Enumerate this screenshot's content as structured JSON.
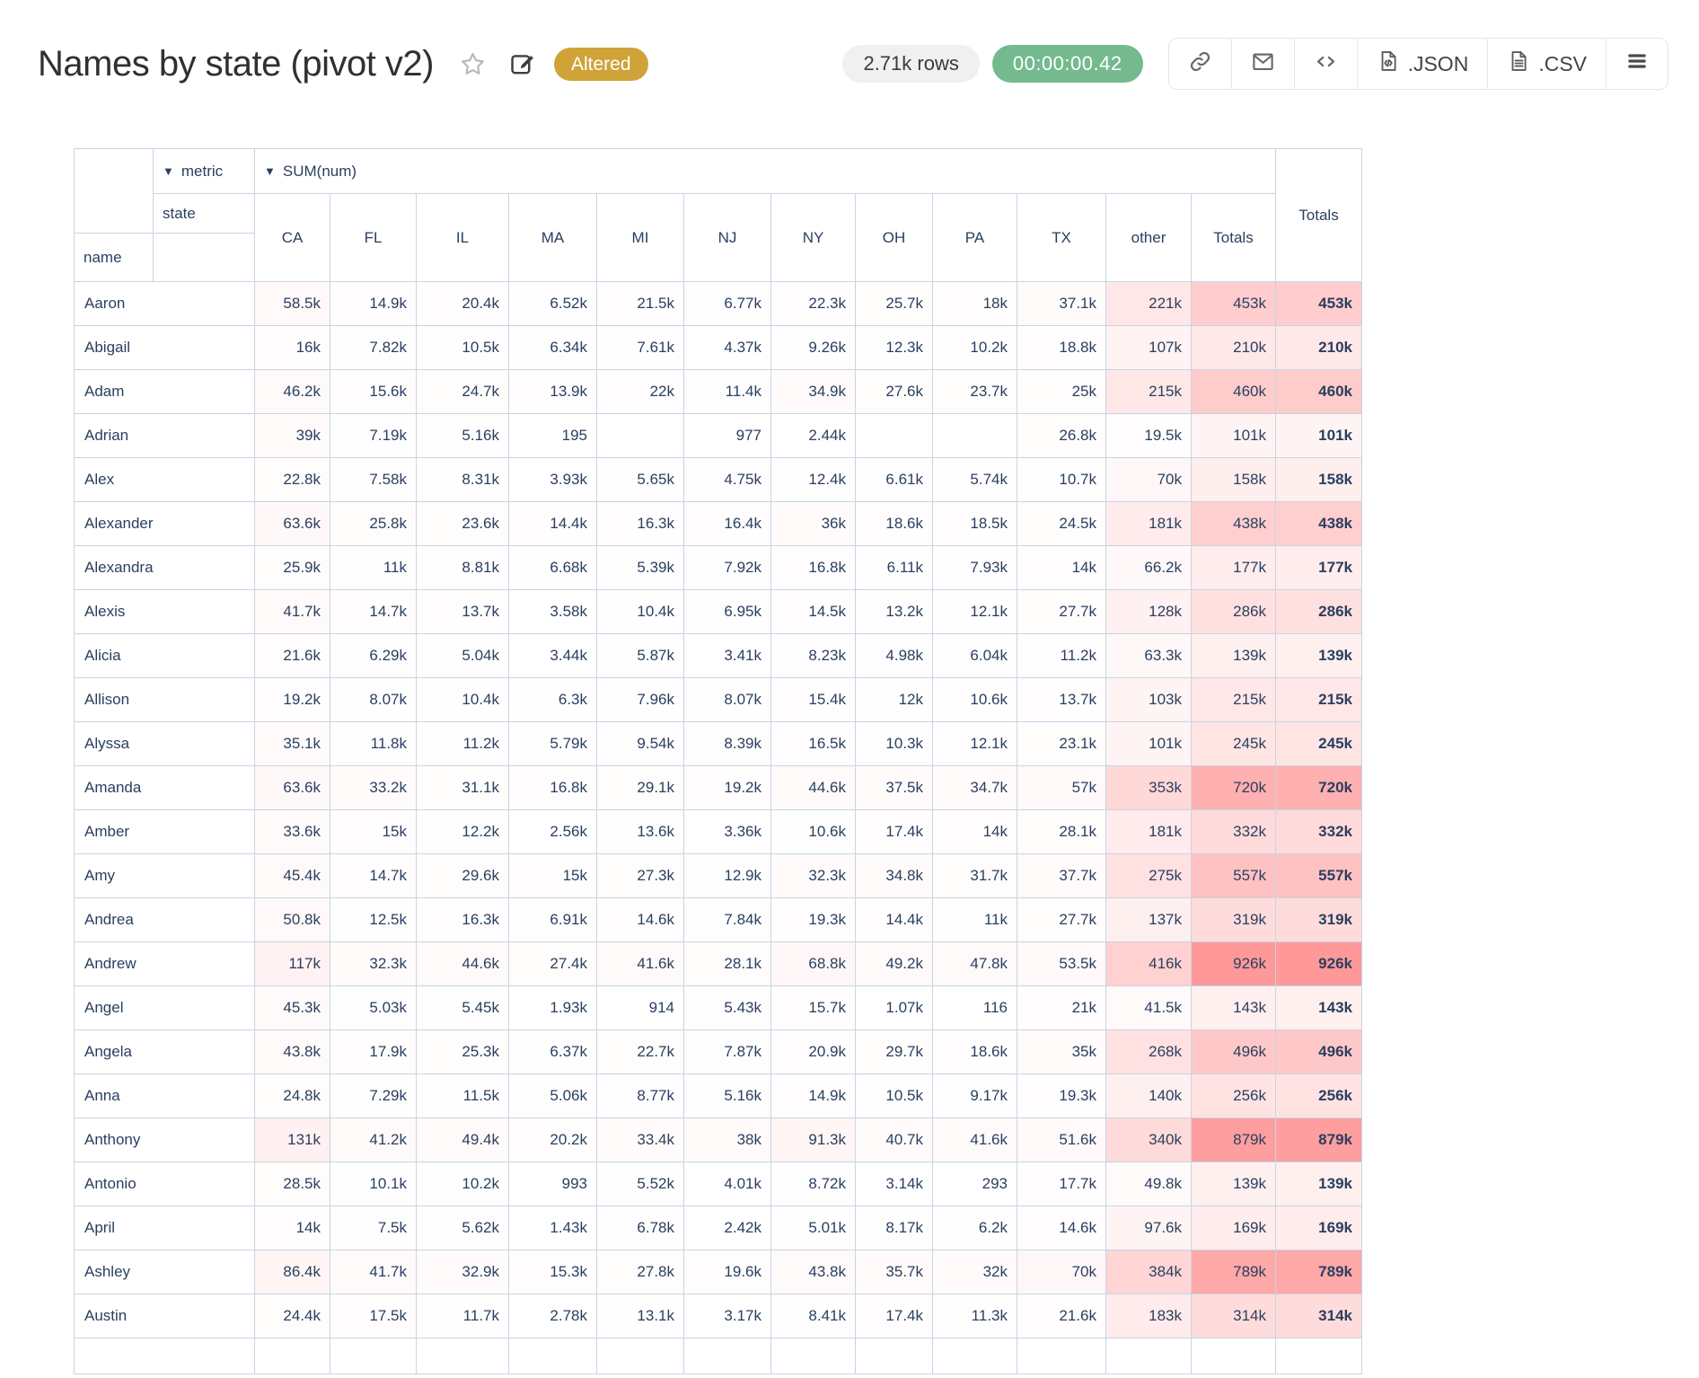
{
  "app": {
    "title": "Names by state (pivot v2)",
    "status_badge": "Altered",
    "row_count": "2.71k rows",
    "runtime": "00:00:00.42",
    "json_label": ".JSON",
    "csv_label": ".CSV"
  },
  "colors": {
    "badge_bg": "#cfa338",
    "runtime_pill_bg": "#74ba8e",
    "row_count_pill_bg": "#f0f0f0",
    "table_border": "#c8d4e3",
    "table_text": "#2a3f5f",
    "heatmap_max": "#ff9999"
  },
  "pivot": {
    "metric_axis_label": "metric",
    "metric_value": "SUM(num)",
    "col_axis_label": "state",
    "row_axis_label": "name",
    "totals_label": "Totals",
    "columns": [
      "CA",
      "FL",
      "IL",
      "MA",
      "MI",
      "NJ",
      "NY",
      "OH",
      "PA",
      "TX",
      "other",
      "Totals"
    ],
    "rows": [
      {
        "name": "Aaron",
        "values": [
          "58.5k",
          "14.9k",
          "20.4k",
          "6.52k",
          "21.5k",
          "6.77k",
          "22.3k",
          "25.7k",
          "18k",
          "37.1k",
          "221k",
          "453k"
        ],
        "total": "453k"
      },
      {
        "name": "Abigail",
        "values": [
          "16k",
          "7.82k",
          "10.5k",
          "6.34k",
          "7.61k",
          "4.37k",
          "9.26k",
          "12.3k",
          "10.2k",
          "18.8k",
          "107k",
          "210k"
        ],
        "total": "210k"
      },
      {
        "name": "Adam",
        "values": [
          "46.2k",
          "15.6k",
          "24.7k",
          "13.9k",
          "22k",
          "11.4k",
          "34.9k",
          "27.6k",
          "23.7k",
          "25k",
          "215k",
          "460k"
        ],
        "total": "460k"
      },
      {
        "name": "Adrian",
        "values": [
          "39k",
          "7.19k",
          "5.16k",
          "195",
          "",
          "977",
          "2.44k",
          "",
          "",
          "26.8k",
          "19.5k",
          "101k"
        ],
        "total": "101k"
      },
      {
        "name": "Alex",
        "values": [
          "22.8k",
          "7.58k",
          "8.31k",
          "3.93k",
          "5.65k",
          "4.75k",
          "12.4k",
          "6.61k",
          "5.74k",
          "10.7k",
          "70k",
          "158k"
        ],
        "total": "158k"
      },
      {
        "name": "Alexander",
        "values": [
          "63.6k",
          "25.8k",
          "23.6k",
          "14.4k",
          "16.3k",
          "16.4k",
          "36k",
          "18.6k",
          "18.5k",
          "24.5k",
          "181k",
          "438k"
        ],
        "total": "438k"
      },
      {
        "name": "Alexandra",
        "values": [
          "25.9k",
          "11k",
          "8.81k",
          "6.68k",
          "5.39k",
          "7.92k",
          "16.8k",
          "6.11k",
          "7.93k",
          "14k",
          "66.2k",
          "177k"
        ],
        "total": "177k"
      },
      {
        "name": "Alexis",
        "values": [
          "41.7k",
          "14.7k",
          "13.7k",
          "3.58k",
          "10.4k",
          "6.95k",
          "14.5k",
          "13.2k",
          "12.1k",
          "27.7k",
          "128k",
          "286k"
        ],
        "total": "286k"
      },
      {
        "name": "Alicia",
        "values": [
          "21.6k",
          "6.29k",
          "5.04k",
          "3.44k",
          "5.87k",
          "3.41k",
          "8.23k",
          "4.98k",
          "6.04k",
          "11.2k",
          "63.3k",
          "139k"
        ],
        "total": "139k"
      },
      {
        "name": "Allison",
        "values": [
          "19.2k",
          "8.07k",
          "10.4k",
          "6.3k",
          "7.96k",
          "8.07k",
          "15.4k",
          "12k",
          "10.6k",
          "13.7k",
          "103k",
          "215k"
        ],
        "total": "215k"
      },
      {
        "name": "Alyssa",
        "values": [
          "35.1k",
          "11.8k",
          "11.2k",
          "5.79k",
          "9.54k",
          "8.39k",
          "16.5k",
          "10.3k",
          "12.1k",
          "23.1k",
          "101k",
          "245k"
        ],
        "total": "245k"
      },
      {
        "name": "Amanda",
        "values": [
          "63.6k",
          "33.2k",
          "31.1k",
          "16.8k",
          "29.1k",
          "19.2k",
          "44.6k",
          "37.5k",
          "34.7k",
          "57k",
          "353k",
          "720k"
        ],
        "total": "720k"
      },
      {
        "name": "Amber",
        "values": [
          "33.6k",
          "15k",
          "12.2k",
          "2.56k",
          "13.6k",
          "3.36k",
          "10.6k",
          "17.4k",
          "14k",
          "28.1k",
          "181k",
          "332k"
        ],
        "total": "332k"
      },
      {
        "name": "Amy",
        "values": [
          "45.4k",
          "14.7k",
          "29.6k",
          "15k",
          "27.3k",
          "12.9k",
          "32.3k",
          "34.8k",
          "31.7k",
          "37.7k",
          "275k",
          "557k"
        ],
        "total": "557k"
      },
      {
        "name": "Andrea",
        "values": [
          "50.8k",
          "12.5k",
          "16.3k",
          "6.91k",
          "14.6k",
          "7.84k",
          "19.3k",
          "14.4k",
          "11k",
          "27.7k",
          "137k",
          "319k"
        ],
        "total": "319k"
      },
      {
        "name": "Andrew",
        "values": [
          "117k",
          "32.3k",
          "44.6k",
          "27.4k",
          "41.6k",
          "28.1k",
          "68.8k",
          "49.2k",
          "47.8k",
          "53.5k",
          "416k",
          "926k"
        ],
        "total": "926k"
      },
      {
        "name": "Angel",
        "values": [
          "45.3k",
          "5.03k",
          "5.45k",
          "1.93k",
          "914",
          "5.43k",
          "15.7k",
          "1.07k",
          "116",
          "21k",
          "41.5k",
          "143k"
        ],
        "total": "143k"
      },
      {
        "name": "Angela",
        "values": [
          "43.8k",
          "17.9k",
          "25.3k",
          "6.37k",
          "22.7k",
          "7.87k",
          "20.9k",
          "29.7k",
          "18.6k",
          "35k",
          "268k",
          "496k"
        ],
        "total": "496k"
      },
      {
        "name": "Anna",
        "values": [
          "24.8k",
          "7.29k",
          "11.5k",
          "5.06k",
          "8.77k",
          "5.16k",
          "14.9k",
          "10.5k",
          "9.17k",
          "19.3k",
          "140k",
          "256k"
        ],
        "total": "256k"
      },
      {
        "name": "Anthony",
        "values": [
          "131k",
          "41.2k",
          "49.4k",
          "20.2k",
          "33.4k",
          "38k",
          "91.3k",
          "40.7k",
          "41.6k",
          "51.6k",
          "340k",
          "879k"
        ],
        "total": "879k"
      },
      {
        "name": "Antonio",
        "values": [
          "28.5k",
          "10.1k",
          "10.2k",
          "993",
          "5.52k",
          "4.01k",
          "8.72k",
          "3.14k",
          "293",
          "17.7k",
          "49.8k",
          "139k"
        ],
        "total": "139k"
      },
      {
        "name": "April",
        "values": [
          "14k",
          "7.5k",
          "5.62k",
          "1.43k",
          "6.78k",
          "2.42k",
          "5.01k",
          "8.17k",
          "6.2k",
          "14.6k",
          "97.6k",
          "169k"
        ],
        "total": "169k"
      },
      {
        "name": "Ashley",
        "values": [
          "86.4k",
          "41.7k",
          "32.9k",
          "15.3k",
          "27.8k",
          "19.6k",
          "43.8k",
          "35.7k",
          "32k",
          "70k",
          "384k",
          "789k"
        ],
        "total": "789k"
      },
      {
        "name": "Austin",
        "values": [
          "24.4k",
          "17.5k",
          "11.7k",
          "2.78k",
          "13.1k",
          "3.17k",
          "8.41k",
          "17.4k",
          "11.3k",
          "21.6k",
          "183k",
          "314k"
        ],
        "total": "314k"
      }
    ]
  }
}
